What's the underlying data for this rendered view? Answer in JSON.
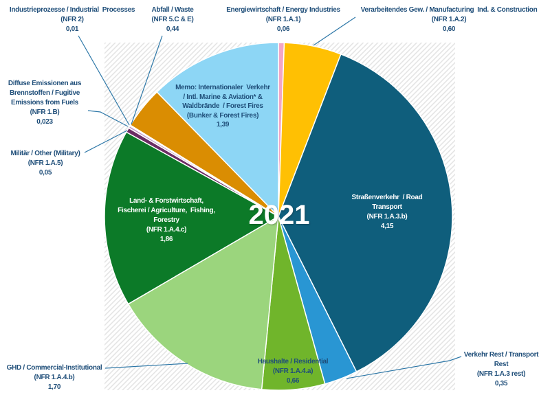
{
  "chart_data": {
    "type": "pie",
    "center_label": "2021",
    "start_angle_deg": 0,
    "direction": "clockwise",
    "value_format": "german decimal comma",
    "style": {
      "label_text_color": "#1F4E79",
      "leader_line_color": "#2E78A8",
      "hatch_line_color": "#E2E2E2",
      "slice_border_color": "#FFFFFF"
    },
    "slices": [
      {
        "id": "energiewirtschaft",
        "name": "Energiewirtschaft / Energy Industries",
        "code": "NFR 1.A.1",
        "value": 0.06,
        "value_label": "0,06",
        "color": "#F3A6C5",
        "label_lines": [
          "Energiewirtschaft / Energy Industries",
          "(NFR 1.A.1)",
          "0,06"
        ]
      },
      {
        "id": "verarbeitendes_gewerbe",
        "name": "Verarbeitendes Gew. / Manufacturing Ind. & Construction",
        "code": "NFR 1.A.2",
        "value": 0.6,
        "value_label": "0,60",
        "color": "#FFC003",
        "label_lines": [
          "Verarbeitendes Gew. / Manufacturing  Ind. & Construction",
          "(NFR 1.A.2)",
          "0,60"
        ]
      },
      {
        "id": "strassenverkehr",
        "name": "Straßenverkehr / Road Transport",
        "code": "NFR 1.A.3.b",
        "value": 4.15,
        "value_label": "4,15",
        "color": "#0F5E7C",
        "label_lines": [
          "Straßenverkehr  / Road",
          "Transport",
          "(NFR 1.A.3.b)",
          "4,15"
        ]
      },
      {
        "id": "verkehr_rest",
        "name": "Verkehr Rest / Transport Rest",
        "code": "NFR 1.A.3 rest",
        "value": 0.35,
        "value_label": "0,35",
        "color": "#2996D3",
        "label_lines": [
          "Verkehr Rest / Transport",
          "Rest",
          "(NFR 1.A.3 rest)",
          "0,35"
        ]
      },
      {
        "id": "haushalte",
        "name": "Haushalte / Residential",
        "code": "NFR 1.A.4.a",
        "value": 0.66,
        "value_label": "0,66",
        "color": "#70B52B",
        "label_lines": [
          "Haushalte / Residential",
          "(NFR 1.A.4.a)",
          "0,66"
        ]
      },
      {
        "id": "ghd",
        "name": "GHD / Commercial-Institutional",
        "code": "NFR 1.A.4.b",
        "value": 1.7,
        "value_label": "1,70",
        "color": "#9BD57D",
        "label_lines": [
          "GHD / Commercial-Institutional",
          "(NFR 1.A.4.b)",
          "1,70"
        ]
      },
      {
        "id": "land_forstwirtschaft",
        "name": "Land- & Forstwirtschaft, Fischerei / Agriculture, Fishing, Forestry",
        "code": "NFR 1.A.4.c",
        "value": 1.86,
        "value_label": "1,86",
        "color": "#0C7A28",
        "label_lines": [
          "Land- & Forstwirtschaft,",
          "Fischerei / Agriculture,  Fishing,",
          "Forestry",
          "(NFR 1.A.4.c)",
          "1,86"
        ]
      },
      {
        "id": "militaer",
        "name": "Militär / Other (Military)",
        "code": "NFR 1.A.5",
        "value": 0.05,
        "value_label": "0,05",
        "color": "#6B2D64",
        "label_lines": [
          "Militär / Other (Military)",
          "(NFR 1.A.5)",
          "0,05"
        ]
      },
      {
        "id": "diffuse_emissionen",
        "name": "Diffuse Emissionen aus Brennstoffen / Fugitive Emissions from Fuels",
        "code": "NFR 1.B",
        "value": 0.023,
        "value_label": "0,023",
        "color": "#C49BC8",
        "label_lines": [
          "Diffuse Emissionen aus",
          "Brennstoffen / Fugitive",
          "Emissions from Fuels",
          "(NFR 1.B)",
          "0,023"
        ]
      },
      {
        "id": "industrieprozesse",
        "name": "Industrieprozesse / Industrial Processes",
        "code": "NFR 2",
        "value": 0.01,
        "value_label": "0,01",
        "color": "#A64D45",
        "label_lines": [
          "Industrieprozesse / Industrial  Processes",
          "(NFR 2)",
          "0,01"
        ]
      },
      {
        "id": "abfall",
        "name": "Abfall / Waste",
        "code": "NFR 5.C & E",
        "value": 0.44,
        "value_label": "0,44",
        "color": "#DA8D02",
        "label_lines": [
          "Abfall / Waste",
          "(NFR 5.C & E)",
          "0,44"
        ]
      },
      {
        "id": "memo_international",
        "name": "Memo: Internationaler Verkehr / Intl. Marine & Aviation* & Waldbrände / Forest Fires",
        "code": "Bunker & Forest Fires",
        "value": 1.39,
        "value_label": "1,39",
        "color": "#8DD6F5",
        "label_lines": [
          "Memo: Internationaler  Verkehr",
          "/ Intl. Marine & Aviation* &",
          "Waldbrände  / Forest Fires",
          "(Bunker & Forest Fires)",
          "1,39"
        ]
      }
    ]
  }
}
